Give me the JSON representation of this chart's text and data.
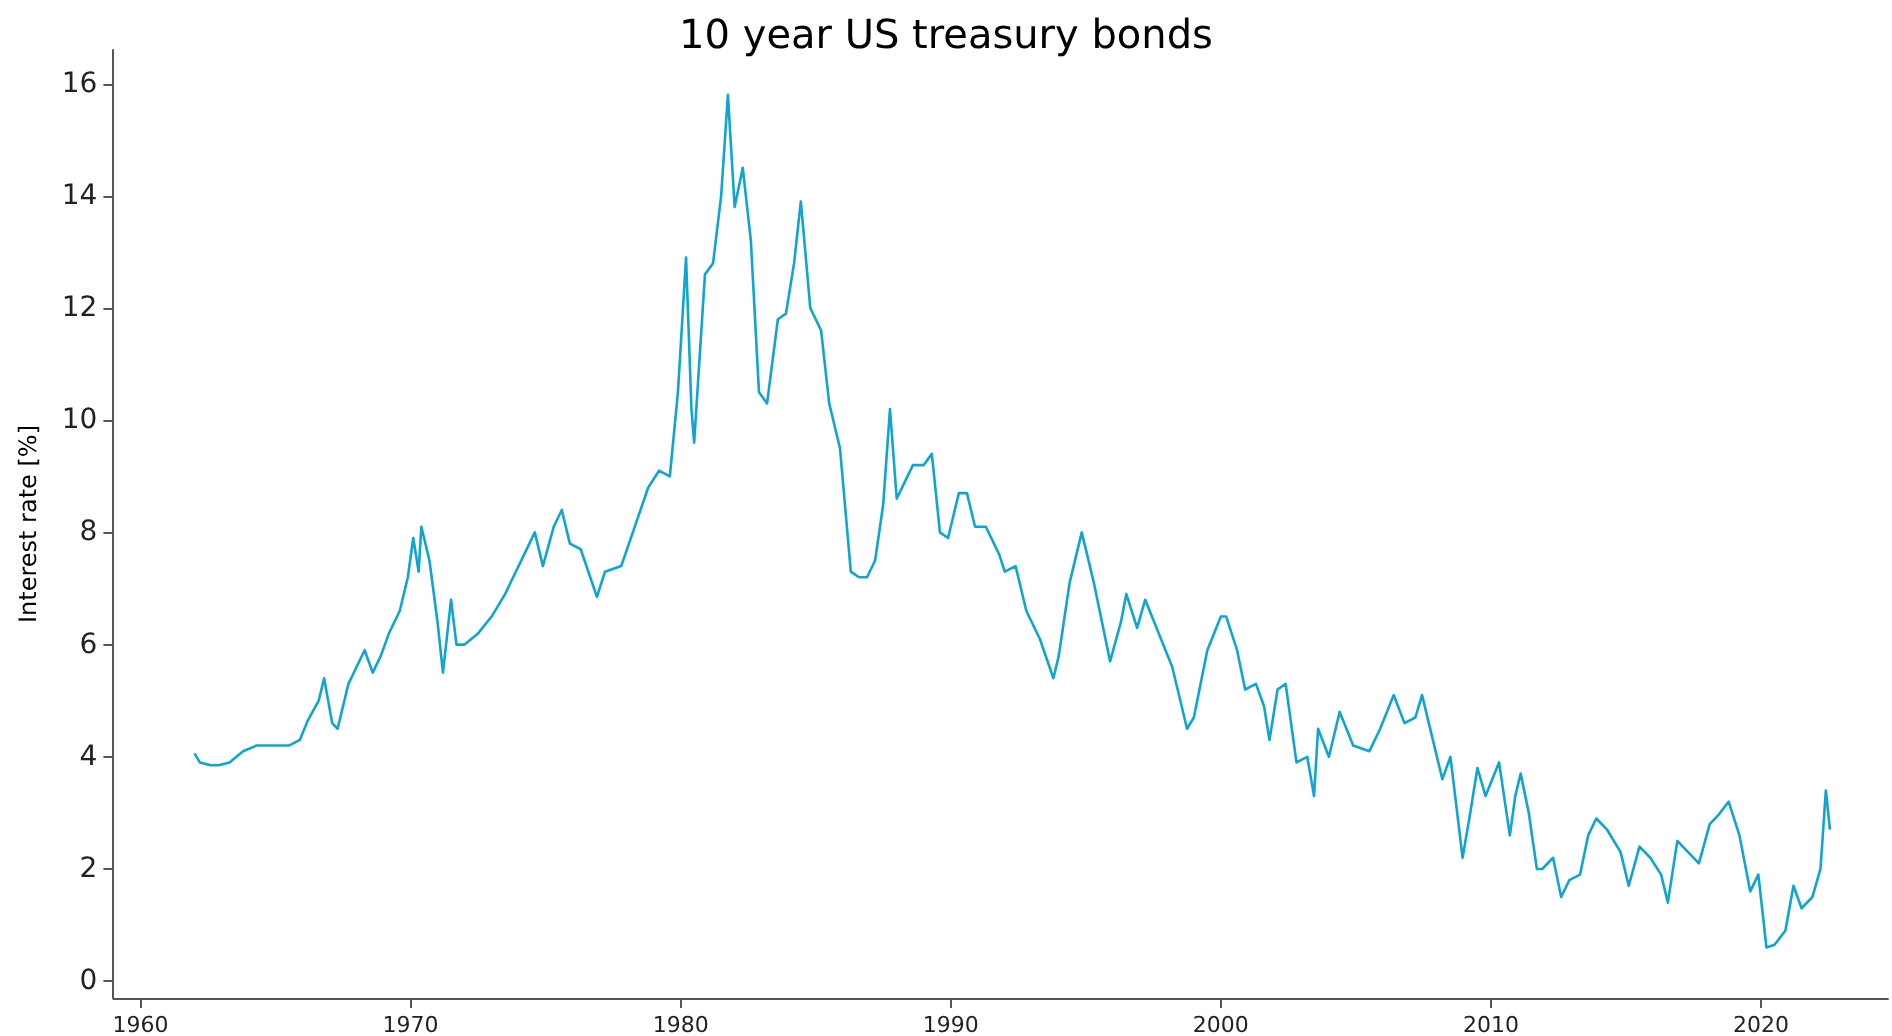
{
  "chart_data": {
    "type": "line",
    "title": "10 year US treasury bonds",
    "ylabel": "Interest rate [%]",
    "color": "#0fa5d0",
    "marker": "none",
    "line_style": "solid",
    "xlim": [
      1959,
      2024.7
    ],
    "xticks": [
      1960,
      1970,
      1980,
      1990,
      2000,
      2010,
      2020
    ],
    "ylim": [
      -0.3,
      16.6
    ],
    "yticks": [
      0,
      2,
      4,
      6,
      8,
      10,
      12,
      14,
      16
    ],
    "x": [
      1962.0,
      1962.2,
      1962.6,
      1962.9,
      1963.3,
      1963.8,
      1964.3,
      1964.9,
      1965.5,
      1965.9,
      1966.2,
      1966.6,
      1966.8,
      1967.1,
      1967.3,
      1967.7,
      1968.0,
      1968.3,
      1968.6,
      1968.9,
      1969.2,
      1969.6,
      1969.9,
      1970.1,
      1970.3,
      1970.4,
      1970.7,
      1971.0,
      1971.2,
      1971.5,
      1971.7,
      1972.0,
      1972.5,
      1973.0,
      1973.5,
      1973.8,
      1974.2,
      1974.6,
      1974.9,
      1975.3,
      1975.6,
      1975.9,
      1976.3,
      1976.9,
      1977.2,
      1977.8,
      1978.3,
      1978.8,
      1979.2,
      1979.6,
      1979.9,
      1980.2,
      1980.4,
      1980.5,
      1980.9,
      1981.2,
      1981.5,
      1981.75,
      1982.0,
      1982.3,
      1982.6,
      1982.9,
      1983.2,
      1983.6,
      1983.9,
      1984.2,
      1984.45,
      1984.8,
      1985.2,
      1985.5,
      1985.9,
      1986.3,
      1986.6,
      1986.9,
      1987.2,
      1987.5,
      1987.75,
      1988.0,
      1988.3,
      1988.6,
      1989.0,
      1989.3,
      1989.6,
      1989.9,
      1990.3,
      1990.6,
      1990.9,
      1991.3,
      1991.8,
      1992.0,
      1992.4,
      1992.8,
      1993.3,
      1993.8,
      1994.0,
      1994.4,
      1994.85,
      1995.3,
      1995.9,
      1996.3,
      1996.5,
      1996.9,
      1997.2,
      1997.7,
      1998.2,
      1998.75,
      1999.0,
      1999.5,
      2000.0,
      2000.2,
      2000.6,
      2000.9,
      2001.3,
      2001.6,
      2001.8,
      2002.1,
      2002.4,
      2002.8,
      2003.2,
      2003.45,
      2003.6,
      2004.0,
      2004.4,
      2004.9,
      2005.5,
      2005.9,
      2006.4,
      2006.8,
      2007.2,
      2007.45,
      2007.8,
      2008.2,
      2008.5,
      2008.95,
      2009.2,
      2009.5,
      2009.8,
      2010.3,
      2010.7,
      2010.9,
      2011.1,
      2011.4,
      2011.7,
      2011.9,
      2012.3,
      2012.6,
      2012.9,
      2013.3,
      2013.6,
      2013.9,
      2014.3,
      2014.8,
      2015.1,
      2015.5,
      2015.9,
      2016.3,
      2016.55,
      2016.9,
      2017.3,
      2017.7,
      2018.1,
      2018.4,
      2018.8,
      2019.2,
      2019.6,
      2019.9,
      2020.2,
      2020.5,
      2020.9,
      2021.2,
      2021.5,
      2021.9,
      2022.2,
      2022.4,
      2022.55
    ],
    "values": [
      4.06,
      3.9,
      3.85,
      3.85,
      3.9,
      4.1,
      4.2,
      4.2,
      4.2,
      4.3,
      4.65,
      5.0,
      5.4,
      4.6,
      4.5,
      5.3,
      5.6,
      5.9,
      5.5,
      5.8,
      6.2,
      6.6,
      7.2,
      7.9,
      7.3,
      8.1,
      7.5,
      6.4,
      5.5,
      6.8,
      6.0,
      6.0,
      6.2,
      6.5,
      6.9,
      7.2,
      7.6,
      8.0,
      7.4,
      8.1,
      8.4,
      7.8,
      7.7,
      6.85,
      7.3,
      7.4,
      8.1,
      8.8,
      9.1,
      9.0,
      10.5,
      12.9,
      10.2,
      9.6,
      12.6,
      12.8,
      14.0,
      15.8,
      13.8,
      14.5,
      13.2,
      10.5,
      10.3,
      11.8,
      11.9,
      12.8,
      13.9,
      12.0,
      11.6,
      10.3,
      9.5,
      7.3,
      7.2,
      7.2,
      7.5,
      8.5,
      10.2,
      8.6,
      8.9,
      9.2,
      9.2,
      9.4,
      8.0,
      7.9,
      8.7,
      8.7,
      8.1,
      8.1,
      7.6,
      7.3,
      7.4,
      6.6,
      6.1,
      5.4,
      5.8,
      7.1,
      8.0,
      7.1,
      5.7,
      6.4,
      6.9,
      6.3,
      6.8,
      6.2,
      5.6,
      4.5,
      4.7,
      5.9,
      6.5,
      6.5,
      5.9,
      5.2,
      5.3,
      4.9,
      4.3,
      5.2,
      5.3,
      3.9,
      4.0,
      3.3,
      4.5,
      4.0,
      4.8,
      4.2,
      4.1,
      4.5,
      5.1,
      4.6,
      4.7,
      5.1,
      4.4,
      3.6,
      4.0,
      2.2,
      2.9,
      3.8,
      3.3,
      3.9,
      2.6,
      3.3,
      3.7,
      3.0,
      2.0,
      2.0,
      2.2,
      1.5,
      1.8,
      1.9,
      2.6,
      2.9,
      2.7,
      2.3,
      1.7,
      2.4,
      2.2,
      1.9,
      1.4,
      2.5,
      2.3,
      2.1,
      2.8,
      2.95,
      3.2,
      2.6,
      1.6,
      1.9,
      0.6,
      0.65,
      0.9,
      1.7,
      1.3,
      1.5,
      2.0,
      3.4,
      2.7
    ]
  }
}
